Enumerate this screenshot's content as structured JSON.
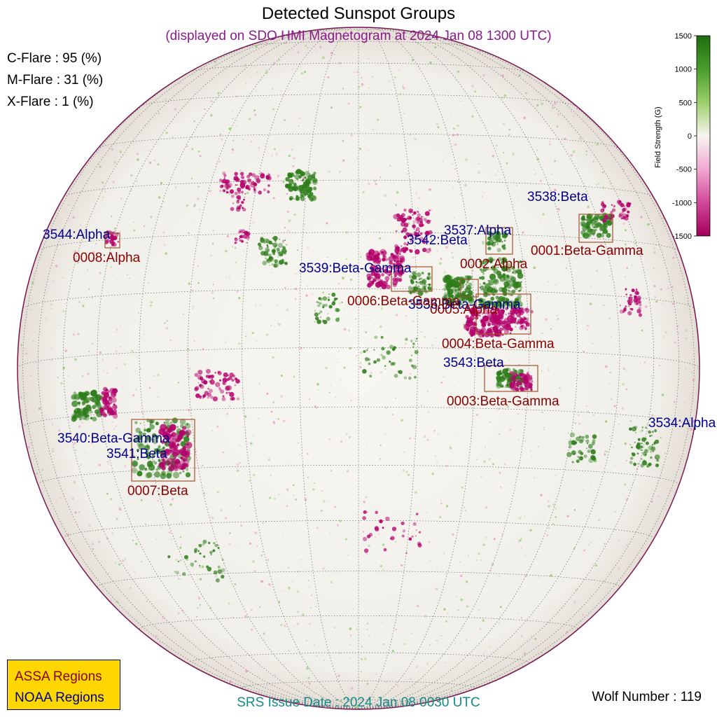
{
  "header": {
    "title": "Detected Sunspot Groups",
    "subtitle": "(displayed on SDO HMI Magnetogram at 2024 Jan 08 1300 UTC)"
  },
  "flare_probabilities": {
    "c": "C-Flare : 95 (%)",
    "m": "M-Flare : 31 (%)",
    "x": "X-Flare :  1 (%)"
  },
  "footer": {
    "issue_date": "SRS Issue Date : 2024 Jan 08 0030 UTC",
    "wolf_number": "Wolf Number : 119"
  },
  "legend": {
    "assa": "ASSA Regions",
    "noaa": "NOAA Regions"
  },
  "colorbar": {
    "label": "Field Strength (G)",
    "ticks": [
      "1500",
      "1000",
      "500",
      "0",
      "-500",
      "-1000",
      "-1500"
    ],
    "colors": [
      "#1f6b10",
      "#4a9e2c",
      "#9ccf6a",
      "#f7f5f0",
      "#f0a8d0",
      "#d2479a",
      "#a3005a"
    ]
  },
  "colors": {
    "noaa_label": "#00008b",
    "assa_label": "#8b0000",
    "box": "#a0522d",
    "positive_field": "#2d7d1a",
    "negative_field": "#b3006b"
  },
  "noaa_regions": [
    {
      "label": "3538:Beta"
    },
    {
      "label": "3537:Alpha"
    },
    {
      "label": "3542:Beta"
    },
    {
      "label": "3544:Alpha"
    },
    {
      "label": "3539:Beta-Gamma"
    },
    {
      "label": "3536:Beta-Gamma"
    },
    {
      "label": "3543:Beta"
    },
    {
      "label": "3540:Beta-Gamma"
    },
    {
      "label": "3541:Beta"
    },
    {
      "label": "3534:Alpha"
    }
  ],
  "assa_regions": [
    {
      "label": "0001:Beta-Gamma"
    },
    {
      "label": "0002:Alpha"
    },
    {
      "label": "0008:Alpha"
    },
    {
      "label": "0006:Beta-Gamma"
    },
    {
      "label": "0005:Alpha"
    },
    {
      "label": "0004:Beta-Gamma"
    },
    {
      "label": "0003:Beta-Gamma"
    },
    {
      "label": "0007:Beta"
    }
  ]
}
